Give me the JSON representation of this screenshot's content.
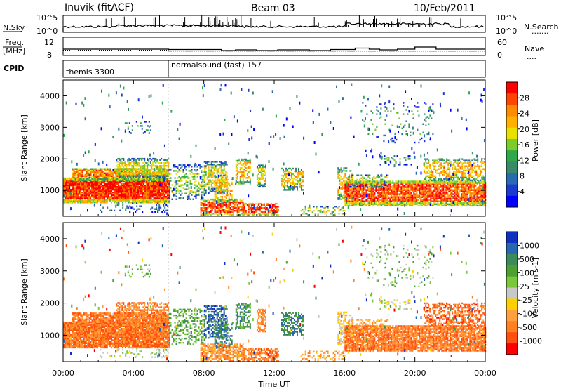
{
  "header": {
    "station": "Inuvik (fitACF)",
    "beam": "Beam 03",
    "date": "10/Feb/2011"
  },
  "top_panel": {
    "left_label_1": "N.Sky",
    "left_label_2": "Freq.",
    "left_label_3": "[MHz]",
    "left_label_4": "CPID",
    "right_label_1": "N.Search",
    "right_label_2": "Nave",
    "right_label_2b": "....",
    "right_label_1b": ".......",
    "ticks_left_noise": [
      "10^5",
      "10^0"
    ],
    "ticks_right_noise": [
      "10^5",
      "10^0"
    ],
    "ticks_left_freq": [
      "12",
      "8"
    ],
    "ticks_right_freq": [
      "60",
      "0"
    ],
    "cpid_1": "themis 3300",
    "cpid_2": "normalsound (fast) 157"
  },
  "chart_data": [
    {
      "type": "heatmap",
      "panel": "power",
      "ylabel": "Slant Range [km]",
      "xlabel": "Time UT",
      "xlim": [
        0,
        24
      ],
      "ylim": [
        180,
        4500
      ],
      "x_ticks": [
        "00:00",
        "04:00",
        "08:00",
        "12:00",
        "16:00",
        "20:00",
        "00:00"
      ],
      "y_ticks": [
        "1000",
        "2000",
        "3000",
        "4000"
      ],
      "colorbar": {
        "label": "Power [dB]",
        "ticks": [
          "28",
          "24",
          "20",
          "16",
          "12",
          "8",
          "4"
        ],
        "colors": [
          "#ff0000",
          "#ff4500",
          "#ff8c00",
          "#ffb000",
          "#e8e000",
          "#7ecc2a",
          "#2ea84a",
          "#3a8a6a",
          "#2a6ab0",
          "#1a3ad0",
          "#0000ff"
        ]
      }
    },
    {
      "type": "heatmap",
      "panel": "velocity",
      "ylabel": "Slant Range [km]",
      "xlabel": "Time UT",
      "xlim": [
        0,
        24
      ],
      "ylim": [
        180,
        4500
      ],
      "x_ticks": [
        "00:00",
        "04:00",
        "08:00",
        "12:00",
        "16:00",
        "20:00",
        "00:00"
      ],
      "y_ticks": [
        "1000",
        "2000",
        "3000",
        "4000"
      ],
      "colorbar": {
        "label": "Velocity [m s-1]",
        "ticks": [
          "1000",
          "500",
          "100",
          "25",
          "-25",
          "-100",
          "-500",
          "-1000"
        ],
        "colors": [
          "#1030c0",
          "#2a66b0",
          "#3b8a5a",
          "#4ca030",
          "#7ac83a",
          "#c8c8c8",
          "#ffd000",
          "#ffa040",
          "#ff8020",
          "#ff5010",
          "#ff0000"
        ]
      }
    }
  ]
}
